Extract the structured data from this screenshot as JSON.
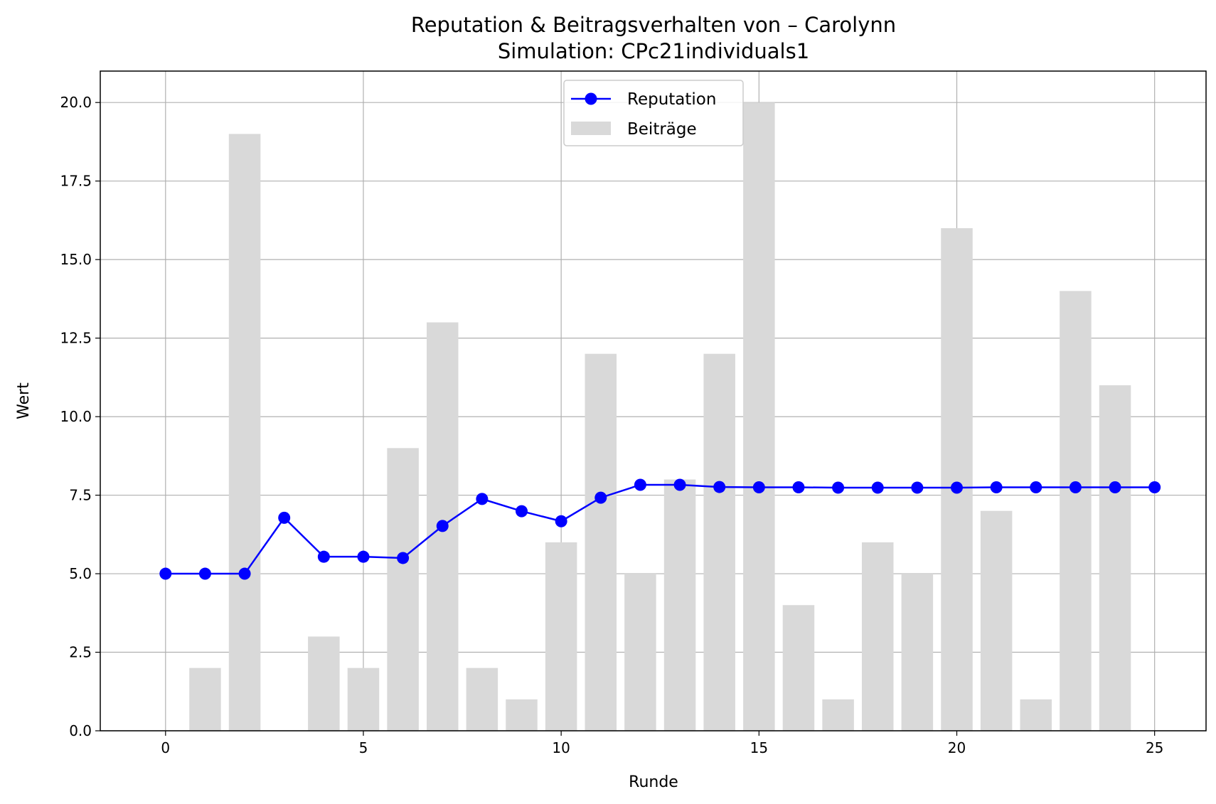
{
  "chart_data": {
    "type": "bar+line",
    "title": "Reputation & Beitragsverhalten von – Carolynn",
    "subtitle": "Simulation: CPc21individuals1",
    "xlabel": "Runde",
    "ylabel": "Wert",
    "xlim": [
      -1.65,
      26.3
    ],
    "ylim": [
      0,
      21
    ],
    "xticks": [
      0,
      5,
      10,
      15,
      20,
      25
    ],
    "xtick_labels": [
      "0",
      "5",
      "10",
      "15",
      "20",
      "25"
    ],
    "yticks": [
      0,
      2.5,
      5,
      7.5,
      10,
      12.5,
      15,
      17.5,
      20
    ],
    "ytick_labels": [
      "0.0",
      "2.5",
      "5.0",
      "7.5",
      "10.0",
      "12.5",
      "15.0",
      "17.5",
      "20.0"
    ],
    "grid": true,
    "legend_position": "top-center",
    "series": [
      {
        "name": "Reputation",
        "kind": "line",
        "color": "#0000ff",
        "x": [
          0,
          1,
          2,
          3,
          4,
          5,
          6,
          7,
          8,
          9,
          10,
          11,
          12,
          13,
          14,
          15,
          16,
          17,
          18,
          19,
          20,
          21,
          22,
          23,
          24,
          25
        ],
        "values": [
          5.0,
          5.0,
          5.0,
          6.78,
          5.54,
          5.54,
          5.5,
          6.52,
          7.38,
          6.99,
          6.67,
          7.42,
          7.83,
          7.83,
          7.76,
          7.75,
          7.75,
          7.74,
          7.74,
          7.74,
          7.74,
          7.75,
          7.75,
          7.75,
          7.75,
          7.75
        ]
      },
      {
        "name": "Beiträge",
        "kind": "bar",
        "color": "#d9d9d9",
        "x": [
          1,
          2,
          4,
          5,
          6,
          7,
          8,
          9,
          10,
          11,
          12,
          13,
          14,
          15,
          16,
          17,
          18,
          19,
          20,
          21,
          22,
          23,
          24
        ],
        "values": [
          2,
          19,
          3,
          2,
          9,
          13,
          2,
          1,
          6,
          12,
          5,
          8,
          12,
          20,
          4,
          1,
          6,
          5,
          16,
          7,
          1,
          14,
          11
        ]
      }
    ]
  }
}
